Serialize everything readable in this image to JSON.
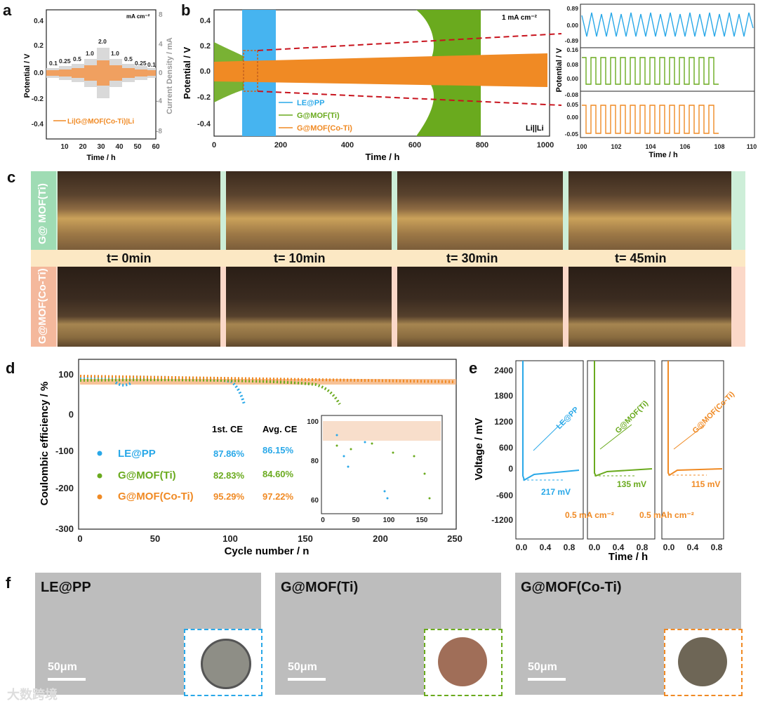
{
  "panels": {
    "a": "a",
    "b": "b",
    "c": "c",
    "d": "d",
    "e": "e",
    "f": "f"
  },
  "colors": {
    "blue": "#29a8e8",
    "green": "#6aaa1e",
    "orange": "#f08a24",
    "grey": "#c8c8c8",
    "red": "#c8141e"
  },
  "panel_a": {
    "ylabel": "Potential / V",
    "y2label": "Current Density / mA",
    "xlabel": "Time / h",
    "unit": "mA cm⁻²",
    "yticks": [
      "0.4",
      "0.2",
      "0.0",
      "-0.2",
      "-0.4"
    ],
    "y2ticks": [
      "8",
      "4",
      "0",
      "-4",
      "-8"
    ],
    "xticks": [
      "10",
      "20",
      "30",
      "40",
      "50",
      "60"
    ],
    "rates": [
      "0.1",
      "0.25",
      "0.5",
      "1.0",
      "2.0",
      "1.0",
      "0.5",
      "0.25",
      "0.1"
    ],
    "legend": "Li|G@MOF(Co-Ti)|Li"
  },
  "panel_b": {
    "ylabel": "Potential / V",
    "xlabel": "Time / h",
    "current": "1 mA cm⁻²",
    "cell": "Li||Li",
    "yticks": [
      "0.4",
      "0.2",
      "0.0",
      "-0.2",
      "-0.4"
    ],
    "xticks": [
      "0",
      "200",
      "400",
      "600",
      "800",
      "1000"
    ],
    "legend": [
      "LE@PP",
      "G@MOF(Ti)",
      "G@MOF(Co-Ti)"
    ],
    "zoom_ylabel": "Potential / V",
    "zoom_xlabel": "Time / h",
    "zoom_xticks": [
      "100",
      "102",
      "104",
      "106",
      "108",
      "110"
    ],
    "zoom_blue_yticks": [
      "0.89",
      "0.00",
      "-0.89"
    ],
    "zoom_green_yticks": [
      "0.16",
      "0.08",
      "0.00",
      "-0.08"
    ],
    "zoom_orange_yticks": [
      "0.05",
      "0.00",
      "-0.05"
    ]
  },
  "panel_c": {
    "rows": [
      "G@ MOF(Ti)",
      "G@MOF(Co-Ti)"
    ],
    "times": [
      "t= 0min",
      "t= 10min",
      "t= 30min",
      "t= 45min"
    ]
  },
  "panel_d": {
    "ylabel": "Coulombic efficiency / %",
    "xlabel": "Cycle number / n",
    "yticks": [
      "100",
      "0",
      "-100",
      "-200",
      "-300"
    ],
    "xticks": [
      "0",
      "50",
      "100",
      "150",
      "200",
      "250"
    ],
    "table_headers": [
      "1st. CE",
      "Avg. CE"
    ],
    "rows": [
      {
        "name": "LE@PP",
        "first": "87.86%",
        "avg": "86.15%"
      },
      {
        "name": "G@MOF(Ti)",
        "first": "82.83%",
        "avg": "84.60%"
      },
      {
        "name": "G@MOF(Co-Ti)",
        "first": "95.29%",
        "avg": "97.22%"
      }
    ],
    "inset_yticks": [
      "100",
      "80",
      "60"
    ],
    "inset_xticks": [
      "0",
      "50",
      "100",
      "150"
    ]
  },
  "panel_e": {
    "ylabel": "Voltage / mV",
    "xlabel": "Time / h",
    "yticks": [
      "2400",
      "1800",
      "1200",
      "600",
      "0",
      "-600",
      "-1200"
    ],
    "xticks": [
      "0.0",
      "0.4",
      "0.8"
    ],
    "labels": [
      "LE@PP",
      "G@MOF(Ti)",
      "G@MOF(Co-Ti)"
    ],
    "overpotentials": [
      "217 mV",
      "135 mV",
      "115 mV"
    ],
    "cond1": "0.5 mA cm⁻²",
    "cond2": "0.5 mAh cm⁻²"
  },
  "panel_f": {
    "labels": [
      "LE@PP",
      "G@MOF(Ti)",
      "G@MOF(Co-Ti)"
    ],
    "scale": "50μm"
  },
  "watermark": "大数跨境"
}
